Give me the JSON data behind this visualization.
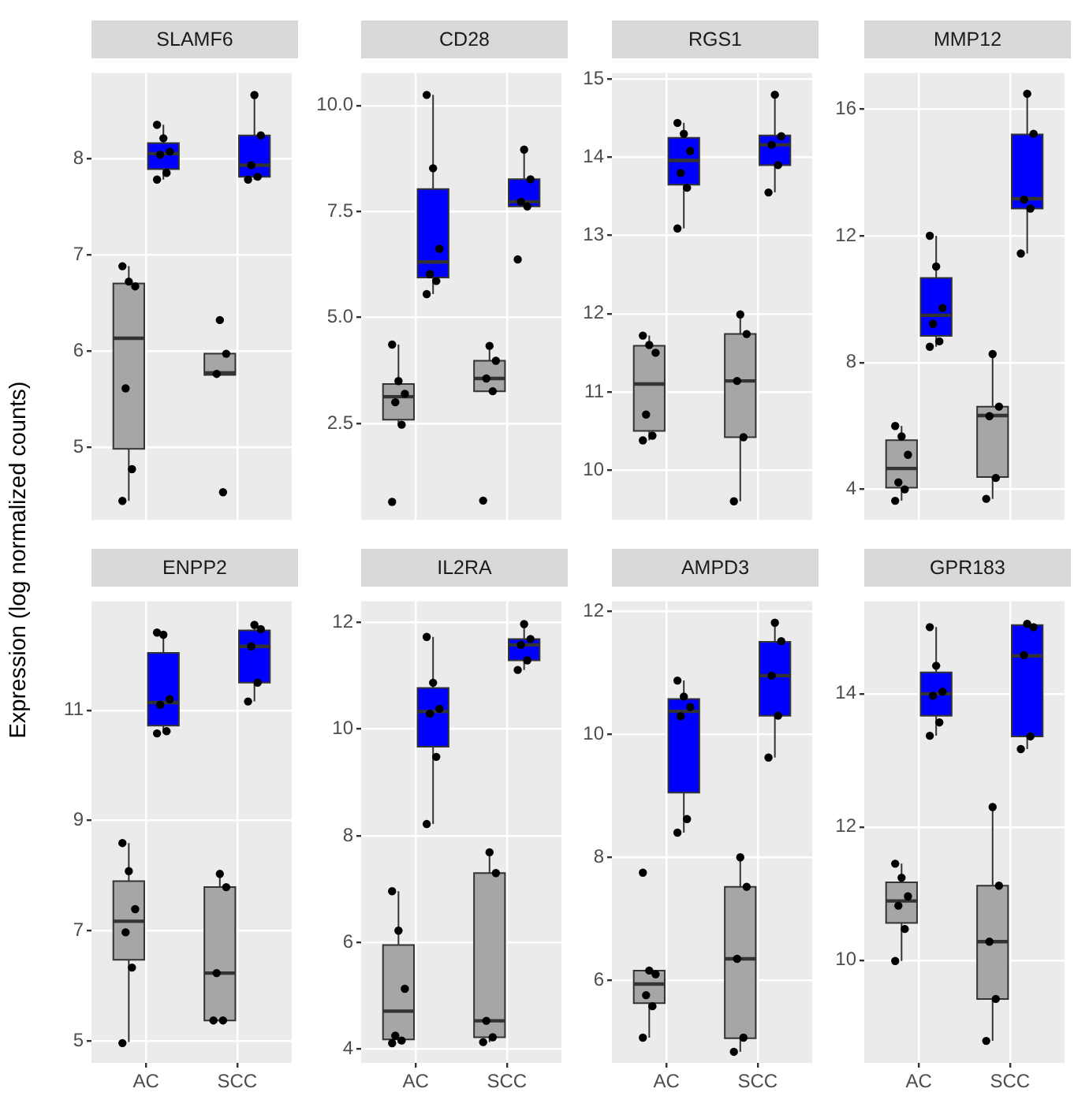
{
  "chart_data": [
    {
      "type": "box",
      "title": "SLAMF6",
      "ylabel": "Expression (log normalized counts)",
      "categories": [
        "AC",
        "SCC"
      ],
      "ylim": [
        4.24,
        8.89
      ],
      "yticks": [
        5,
        6,
        7,
        8
      ],
      "grid": true,
      "tick_labels": "y",
      "marker": "circle",
      "series": [
        {
          "color": "#a6a6a6",
          "boxes": [
            {
              "low": 4.44,
              "q1": 4.98,
              "median": 6.13,
              "q3": 6.7,
              "high": 6.88
            },
            {
              "low": 5.75,
              "q1": 5.75,
              "median": 5.77,
              "q3": 5.97,
              "high": 5.97
            }
          ]
        },
        {
          "color": "#0000ff",
          "boxes": [
            {
              "low": 7.78,
              "q1": 7.89,
              "median": 8.05,
              "q3": 8.16,
              "high": 8.35
            },
            {
              "low": 7.78,
              "q1": 7.81,
              "median": 7.93,
              "q3": 8.24,
              "high": 8.66
            }
          ]
        },
        {
          "type": "scatter",
          "color": "#000000",
          "x": [
            "AC",
            "AC",
            "AC",
            "AC",
            "AC",
            "AC",
            "SCC",
            "SCC",
            "SCC",
            "SCC"
          ],
          "values": [
            6.88,
            6.72,
            6.67,
            5.61,
            4.77,
            4.44,
            6.32,
            5.97,
            5.76,
            4.53
          ]
        },
        {
          "type": "scatter",
          "color": "#000000",
          "x": [
            "AC",
            "AC",
            "AC",
            "AC",
            "AC",
            "AC",
            "SCC",
            "SCC",
            "SCC",
            "SCC",
            "SCC"
          ],
          "values": [
            8.35,
            8.21,
            8.07,
            8.04,
            7.85,
            7.78,
            8.66,
            8.24,
            7.93,
            7.81,
            7.78
          ]
        }
      ]
    },
    {
      "type": "box",
      "title": "CD28",
      "categories": [
        "AC",
        "SCC"
      ],
      "ylim": [
        0.22,
        10.77
      ],
      "yticks": [
        {
          "value": 2.5,
          "label": "2.5"
        },
        {
          "value": 5,
          "label": "5.0"
        },
        {
          "value": 7.5,
          "label": "7.5"
        },
        {
          "value": 10,
          "label": "10.0"
        }
      ],
      "grid": true,
      "tick_labels": "y",
      "marker": "circle",
      "series": [
        {
          "color": "#a6a6a6",
          "boxes": [
            {
              "low": 2.47,
              "q1": 2.59,
              "median": 3.13,
              "q3": 3.43,
              "high": 4.36
            },
            {
              "low": 3.26,
              "q1": 3.26,
              "median": 3.56,
              "q3": 3.98,
              "high": 4.33
            }
          ]
        },
        {
          "color": "#0000ff",
          "boxes": [
            {
              "low": 5.55,
              "q1": 5.94,
              "median": 6.31,
              "q3": 8.03,
              "high": 10.25
            },
            {
              "low": 7.62,
              "q1": 7.62,
              "median": 7.73,
              "q3": 8.26,
              "high": 8.96
            }
          ]
        },
        {
          "type": "scatter",
          "color": "#000000",
          "x": [
            "AC",
            "AC",
            "AC",
            "AC",
            "AC",
            "AC",
            "SCC",
            "SCC",
            "SCC",
            "SCC",
            "SCC"
          ],
          "values": [
            4.36,
            3.5,
            3.2,
            3.0,
            2.47,
            0.65,
            4.33,
            3.98,
            3.56,
            3.26,
            0.68
          ]
        },
        {
          "type": "scatter",
          "color": "#000000",
          "x": [
            "AC",
            "AC",
            "AC",
            "AC",
            "AC",
            "AC",
            "SCC",
            "SCC",
            "SCC",
            "SCC",
            "SCC"
          ],
          "values": [
            10.25,
            8.52,
            6.62,
            6.02,
            5.86,
            5.55,
            8.96,
            8.26,
            7.73,
            7.62,
            6.37
          ]
        }
      ]
    },
    {
      "type": "box",
      "title": "RGS1",
      "categories": [
        "AC",
        "SCC"
      ],
      "ylim": [
        9.36,
        15.08
      ],
      "yticks": [
        10,
        11,
        12,
        13,
        14,
        15
      ],
      "grid": true,
      "tick_labels": "y",
      "marker": "circle",
      "series": [
        {
          "color": "#a6a6a6",
          "boxes": [
            {
              "low": 10.38,
              "q1": 10.5,
              "median": 11.1,
              "q3": 11.59,
              "high": 11.72
            },
            {
              "low": 9.6,
              "q1": 10.42,
              "median": 11.14,
              "q3": 11.74,
              "high": 11.99
            }
          ]
        },
        {
          "color": "#0000ff",
          "boxes": [
            {
              "low": 13.09,
              "q1": 13.65,
              "median": 13.96,
              "q3": 14.25,
              "high": 14.44
            },
            {
              "low": 13.55,
              "q1": 13.9,
              "median": 14.16,
              "q3": 14.28,
              "high": 14.8
            }
          ]
        },
        {
          "type": "scatter",
          "color": "#000000",
          "x": [
            "AC",
            "AC",
            "AC",
            "AC",
            "AC",
            "AC",
            "SCC",
            "SCC",
            "SCC",
            "SCC",
            "SCC"
          ],
          "values": [
            11.72,
            11.6,
            11.5,
            10.71,
            10.44,
            10.38,
            11.99,
            11.74,
            11.14,
            10.42,
            9.6
          ]
        },
        {
          "type": "scatter",
          "color": "#000000",
          "x": [
            "AC",
            "AC",
            "AC",
            "AC",
            "AC",
            "AC",
            "SCC",
            "SCC",
            "SCC",
            "SCC",
            "SCC"
          ],
          "values": [
            14.44,
            14.3,
            14.08,
            13.8,
            13.61,
            13.09,
            14.8,
            14.27,
            14.16,
            13.9,
            13.55
          ]
        }
      ]
    },
    {
      "type": "box",
      "title": "MMP12",
      "categories": [
        "AC",
        "SCC"
      ],
      "ylim": [
        3.03,
        17.14
      ],
      "yticks": [
        4,
        8,
        12,
        16
      ],
      "grid": true,
      "tick_labels": "y",
      "marker": "circle",
      "series": [
        {
          "color": "#a6a6a6",
          "boxes": [
            {
              "low": 3.64,
              "q1": 4.05,
              "median": 4.66,
              "q3": 5.55,
              "high": 6.0
            },
            {
              "low": 3.7,
              "q1": 4.39,
              "median": 6.33,
              "q3": 6.61,
              "high": 8.27
            }
          ]
        },
        {
          "color": "#0000ff",
          "boxes": [
            {
              "low": 8.5,
              "q1": 8.84,
              "median": 9.49,
              "q3": 10.67,
              "high": 12.0
            },
            {
              "low": 11.44,
              "q1": 12.86,
              "median": 13.17,
              "q3": 15.2,
              "high": 16.48
            }
          ]
        },
        {
          "type": "scatter",
          "color": "#000000",
          "x": [
            "AC",
            "AC",
            "AC",
            "AC",
            "AC",
            "AC",
            "SCC",
            "SCC",
            "SCC",
            "SCC",
            "SCC"
          ],
          "values": [
            6.0,
            5.67,
            5.09,
            4.22,
            4.0,
            3.64,
            8.27,
            6.61,
            6.31,
            4.36,
            3.7
          ]
        },
        {
          "type": "scatter",
          "color": "#000000",
          "x": [
            "AC",
            "AC",
            "AC",
            "AC",
            "AC",
            "AC",
            "SCC",
            "SCC",
            "SCC",
            "SCC",
            "SCC"
          ],
          "values": [
            12.0,
            11.03,
            9.72,
            9.22,
            8.67,
            8.5,
            16.48,
            15.22,
            13.14,
            12.86,
            11.44
          ]
        }
      ]
    },
    {
      "type": "box",
      "title": "ENPP2",
      "categories": [
        "AC",
        "SCC"
      ],
      "ylim": [
        4.6,
        12.98
      ],
      "yticks": [
        5,
        7,
        9,
        11
      ],
      "grid": true,
      "marker": "circle",
      "series": [
        {
          "color": "#a6a6a6",
          "boxes": [
            {
              "low": 4.98,
              "q1": 6.47,
              "median": 7.17,
              "q3": 7.9,
              "high": 8.59
            },
            {
              "low": 5.37,
              "q1": 5.37,
              "median": 6.23,
              "q3": 7.79,
              "high": 8.03
            }
          ]
        },
        {
          "color": "#0000ff",
          "boxes": [
            {
              "low": 10.58,
              "q1": 10.72,
              "median": 11.14,
              "q3": 12.04,
              "high": 12.41
            },
            {
              "low": 11.16,
              "q1": 11.5,
              "median": 12.16,
              "q3": 12.45,
              "high": 12.55
            }
          ]
        },
        {
          "type": "scatter",
          "color": "#000000",
          "x": [
            "AC",
            "AC",
            "AC",
            "AC",
            "AC",
            "AC",
            "SCC",
            "SCC",
            "SCC",
            "SCC",
            "SCC"
          ],
          "values": [
            8.59,
            8.08,
            7.39,
            6.97,
            6.33,
            4.96,
            8.03,
            7.79,
            6.23,
            5.37,
            5.37
          ]
        },
        {
          "type": "scatter",
          "color": "#000000",
          "x": [
            "AC",
            "AC",
            "AC",
            "AC",
            "AC",
            "AC",
            "SCC",
            "SCC",
            "SCC",
            "SCC",
            "SCC"
          ],
          "values": [
            12.41,
            12.37,
            11.2,
            11.1,
            10.62,
            10.58,
            12.55,
            12.47,
            12.16,
            11.5,
            11.16
          ]
        }
      ]
    },
    {
      "type": "box",
      "title": "IL2RA",
      "categories": [
        "AC",
        "SCC"
      ],
      "ylim": [
        3.74,
        12.4
      ],
      "yticks": [
        4,
        6,
        8,
        10,
        12
      ],
      "grid": true,
      "marker": "circle",
      "series": [
        {
          "color": "#a6a6a6",
          "boxes": [
            {
              "low": 4.11,
              "q1": 4.18,
              "median": 4.71,
              "q3": 5.95,
              "high": 6.96
            },
            {
              "low": 4.13,
              "q1": 4.22,
              "median": 4.53,
              "q3": 7.3,
              "high": 7.69
            }
          ]
        },
        {
          "color": "#0000ff",
          "boxes": [
            {
              "low": 8.22,
              "q1": 9.67,
              "median": 10.33,
              "q3": 10.77,
              "high": 11.73
            },
            {
              "low": 11.11,
              "q1": 11.29,
              "median": 11.58,
              "q3": 11.69,
              "high": 11.97
            }
          ]
        },
        {
          "type": "scatter",
          "color": "#000000",
          "x": [
            "AC",
            "AC",
            "AC",
            "AC",
            "AC",
            "AC",
            "SCC",
            "SCC",
            "SCC",
            "SCC",
            "SCC"
          ],
          "values": [
            6.96,
            6.22,
            5.13,
            4.25,
            4.16,
            4.11,
            7.69,
            7.3,
            4.53,
            4.22,
            4.13
          ]
        },
        {
          "type": "scatter",
          "color": "#000000",
          "x": [
            "AC",
            "AC",
            "AC",
            "AC",
            "AC",
            "AC",
            "SCC",
            "SCC",
            "SCC",
            "SCC",
            "SCC"
          ],
          "values": [
            11.73,
            10.87,
            10.38,
            10.29,
            9.48,
            8.22,
            11.97,
            11.69,
            11.58,
            11.29,
            11.11
          ]
        }
      ]
    },
    {
      "type": "box",
      "title": "AMPD3",
      "categories": [
        "AC",
        "SCC"
      ],
      "ylim": [
        4.66,
        12.16
      ],
      "yticks": [
        6,
        8,
        10,
        12
      ],
      "grid": true,
      "marker": "circle",
      "series": [
        {
          "color": "#a6a6a6",
          "boxes": [
            {
              "low": 5.07,
              "q1": 5.63,
              "median": 5.94,
              "q3": 6.16,
              "high": 6.17
            },
            {
              "low": 4.84,
              "q1": 5.06,
              "median": 6.35,
              "q3": 7.52,
              "high": 8.0
            }
          ]
        },
        {
          "color": "#0000ff",
          "boxes": [
            {
              "low": 8.4,
              "q1": 9.05,
              "median": 10.37,
              "q3": 10.57,
              "high": 10.87
            },
            {
              "low": 9.62,
              "q1": 10.3,
              "median": 10.95,
              "q3": 11.5,
              "high": 11.81
            }
          ]
        },
        {
          "type": "scatter",
          "color": "#000000",
          "x": [
            "AC",
            "AC",
            "AC",
            "AC",
            "AC",
            "AC",
            "SCC",
            "SCC",
            "SCC",
            "SCC",
            "SCC"
          ],
          "values": [
            7.75,
            6.16,
            6.1,
            5.76,
            5.58,
            5.07,
            8.0,
            7.52,
            6.35,
            5.07,
            4.84
          ]
        },
        {
          "type": "scatter",
          "color": "#000000",
          "x": [
            "AC",
            "AC",
            "AC",
            "AC",
            "AC",
            "AC",
            "SCC",
            "SCC",
            "SCC",
            "SCC",
            "SCC"
          ],
          "values": [
            10.87,
            10.61,
            10.44,
            10.29,
            8.62,
            8.4,
            11.81,
            11.51,
            10.95,
            10.3,
            9.62
          ]
        }
      ]
    },
    {
      "type": "box",
      "title": "GPR183",
      "categories": [
        "AC",
        "SCC"
      ],
      "ylim": [
        8.46,
        15.39
      ],
      "yticks": [
        10,
        12,
        14
      ],
      "grid": true,
      "marker": "circle",
      "series": [
        {
          "color": "#a6a6a6",
          "boxes": [
            {
              "low": 9.99,
              "q1": 10.56,
              "median": 10.89,
              "q3": 11.17,
              "high": 11.45
            },
            {
              "low": 8.79,
              "q1": 9.42,
              "median": 10.28,
              "q3": 11.12,
              "high": 12.3
            }
          ]
        },
        {
          "color": "#0000ff",
          "boxes": [
            {
              "low": 13.37,
              "q1": 13.67,
              "median": 14.0,
              "q3": 14.32,
              "high": 15.0
            },
            {
              "low": 13.17,
              "q1": 13.36,
              "median": 14.57,
              "q3": 15.03,
              "high": 15.05
            }
          ]
        },
        {
          "type": "scatter",
          "color": "#000000",
          "x": [
            "AC",
            "AC",
            "AC",
            "AC",
            "AC",
            "AC",
            "SCC",
            "SCC",
            "SCC",
            "SCC",
            "SCC"
          ],
          "values": [
            11.45,
            11.24,
            10.96,
            10.82,
            10.47,
            9.99,
            12.3,
            11.12,
            10.28,
            9.42,
            8.79
          ]
        },
        {
          "type": "scatter",
          "color": "#000000",
          "x": [
            "AC",
            "AC",
            "AC",
            "AC",
            "AC",
            "AC",
            "SCC",
            "SCC",
            "SCC",
            "SCC",
            "SCC"
          ],
          "values": [
            15.0,
            14.42,
            14.03,
            13.97,
            13.57,
            13.37,
            15.05,
            15.0,
            14.58,
            13.36,
            13.17
          ]
        }
      ]
    }
  ]
}
